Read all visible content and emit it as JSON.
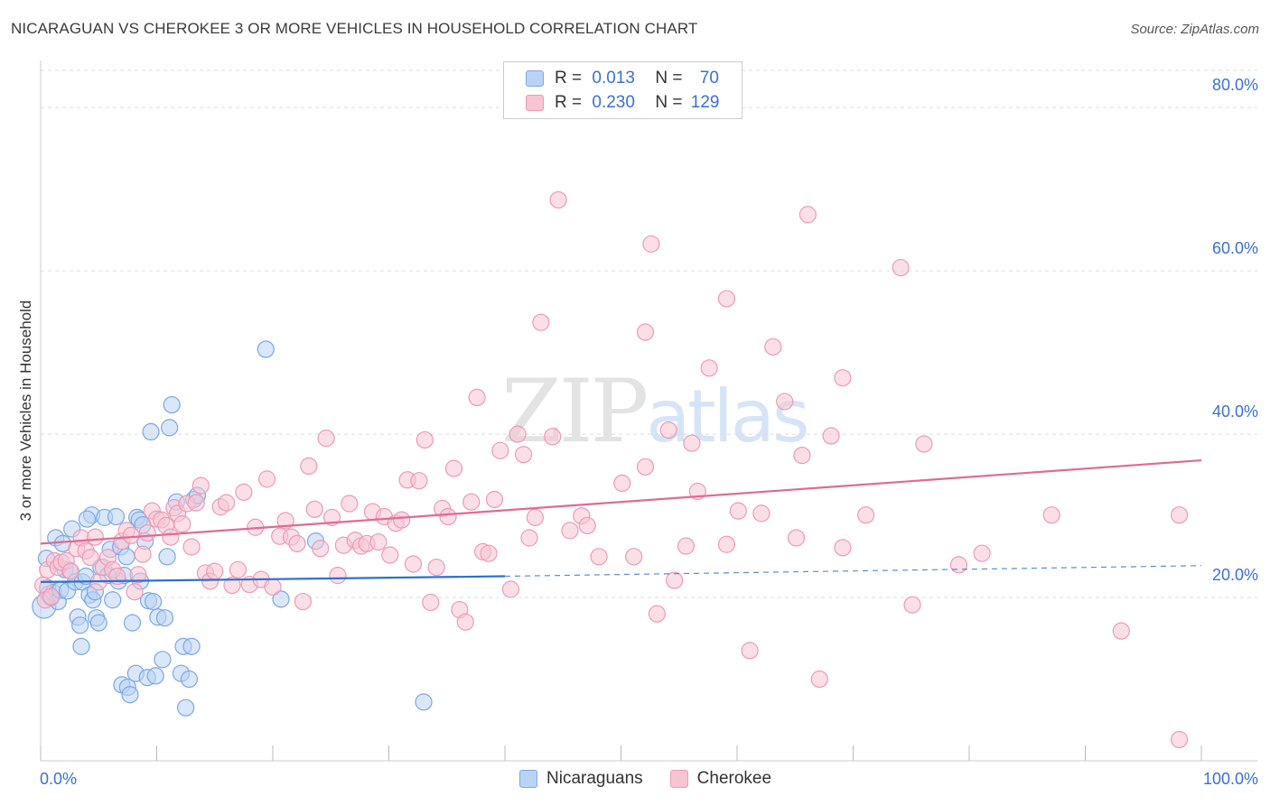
{
  "title": "NICARAGUAN VS CHEROKEE 3 OR MORE VEHICLES IN HOUSEHOLD CORRELATION CHART",
  "source": "Source: ZipAtlas.com",
  "watermark": {
    "zip": "ZIP",
    "atlas": "atlas"
  },
  "legend_top": [
    {
      "r_label": "R =",
      "r_value": "0.013",
      "n_label": "N =",
      "n_value": "70"
    },
    {
      "r_label": "R =",
      "r_value": "0.230",
      "n_label": "N =",
      "n_value": "129"
    }
  ],
  "colors": {
    "blue_fill": "#b9d3f4",
    "blue_stroke": "#7ba7e4",
    "blue_line": "#2f6fd0",
    "pink_fill": "#f7c4d4",
    "pink_stroke": "#ec9ab5",
    "pink_line": "#e06a93",
    "axis_text": "#3a6fd8",
    "grid": "#dddddd"
  },
  "chart_data": {
    "type": "scatter",
    "title": "NICARAGUAN VS CHEROKEE 3 OR MORE VEHICLES IN HOUSEHOLD CORRELATION CHART",
    "xlabel": "",
    "ylabel": "3 or more Vehicles in Household",
    "xlim": [
      0,
      100
    ],
    "ylim": [
      0,
      85
    ],
    "x_tick_labels": [
      {
        "value": 0,
        "label": "0.0%"
      },
      {
        "value": 100,
        "label": "100.0%"
      }
    ],
    "y_tick_labels": [
      {
        "value": 20,
        "label": "20.0%"
      },
      {
        "value": 40,
        "label": "40.0%"
      },
      {
        "value": 60,
        "label": "60.0%"
      },
      {
        "value": 80,
        "label": "80.0%"
      }
    ],
    "x_minor_ticks": [
      0,
      10,
      20,
      30,
      40,
      50,
      60,
      70,
      80,
      90,
      100
    ],
    "grid": true,
    "legend_position": "bottom-center",
    "series": [
      {
        "name": "Nicaraguans",
        "color": "blue",
        "R": 0.013,
        "N": 70,
        "trend": {
          "x0": 0,
          "y0": 21.9,
          "x1": 40,
          "y1": 22.6,
          "dashed_to_x": 100,
          "dashed_to_y": 23.9
        },
        "points": [
          [
            0.3,
            18.9
          ],
          [
            0.5,
            24.8
          ],
          [
            0.6,
            21.2
          ],
          [
            0.7,
            20.4
          ],
          [
            0.9,
            20.0
          ],
          [
            1.1,
            20.6
          ],
          [
            1.3,
            27.3
          ],
          [
            1.5,
            19.5
          ],
          [
            1.7,
            20.9
          ],
          [
            1.9,
            26.6
          ],
          [
            2.1,
            23.4
          ],
          [
            2.3,
            20.8
          ],
          [
            2.5,
            23.3
          ],
          [
            2.7,
            28.4
          ],
          [
            3.0,
            21.9
          ],
          [
            3.2,
            17.6
          ],
          [
            3.4,
            16.6
          ],
          [
            3.5,
            14.0
          ],
          [
            3.6,
            21.9
          ],
          [
            3.9,
            22.6
          ],
          [
            4.2,
            20.3
          ],
          [
            4.4,
            30.1
          ],
          [
            4.5,
            19.7
          ],
          [
            4.7,
            20.7
          ],
          [
            4.8,
            17.5
          ],
          [
            5.0,
            16.9
          ],
          [
            5.2,
            23.7
          ],
          [
            5.5,
            29.8
          ],
          [
            5.8,
            22.7
          ],
          [
            6.0,
            25.9
          ],
          [
            6.2,
            19.7
          ],
          [
            6.5,
            29.9
          ],
          [
            6.7,
            22.0
          ],
          [
            6.9,
            26.2
          ],
          [
            7.0,
            9.3
          ],
          [
            7.2,
            22.7
          ],
          [
            7.4,
            25.0
          ],
          [
            7.5,
            9.0
          ],
          [
            7.7,
            8.1
          ],
          [
            7.9,
            16.9
          ],
          [
            8.2,
            10.7
          ],
          [
            8.3,
            29.8
          ],
          [
            8.5,
            29.5
          ],
          [
            8.6,
            22.0
          ],
          [
            8.8,
            28.9
          ],
          [
            9.0,
            26.9
          ],
          [
            9.2,
            10.2
          ],
          [
            9.3,
            19.6
          ],
          [
            9.5,
            40.3
          ],
          [
            9.7,
            19.5
          ],
          [
            9.9,
            10.4
          ],
          [
            10.1,
            17.6
          ],
          [
            10.5,
            12.4
          ],
          [
            10.7,
            17.5
          ],
          [
            10.9,
            25.0
          ],
          [
            11.1,
            40.8
          ],
          [
            11.3,
            43.6
          ],
          [
            11.7,
            31.7
          ],
          [
            12.1,
            10.7
          ],
          [
            12.3,
            14.0
          ],
          [
            12.5,
            6.5
          ],
          [
            12.8,
            10.0
          ],
          [
            13.0,
            14.0
          ],
          [
            13.2,
            32.0
          ],
          [
            13.5,
            32.5
          ],
          [
            19.4,
            50.4
          ],
          [
            20.7,
            19.8
          ],
          [
            23.7,
            26.9
          ],
          [
            33.0,
            7.2
          ],
          [
            4.0,
            29.6
          ]
        ]
      },
      {
        "name": "Cherokee",
        "color": "pink",
        "R": 0.23,
        "N": 129,
        "trend": {
          "x0": 0,
          "y0": 26.6,
          "x1": 100,
          "y1": 36.8
        },
        "points": [
          [
            0.2,
            21.5
          ],
          [
            0.4,
            19.7
          ],
          [
            0.6,
            23.4
          ],
          [
            0.9,
            20.1
          ],
          [
            1.2,
            24.5
          ],
          [
            1.5,
            23.7
          ],
          [
            1.8,
            24.3
          ],
          [
            2.2,
            24.5
          ],
          [
            2.6,
            23.2
          ],
          [
            3.1,
            26.0
          ],
          [
            3.5,
            27.3
          ],
          [
            3.9,
            25.7
          ],
          [
            4.3,
            24.9
          ],
          [
            4.7,
            27.4
          ],
          [
            5.0,
            21.9
          ],
          [
            5.4,
            23.7
          ],
          [
            5.8,
            24.9
          ],
          [
            6.2,
            23.4
          ],
          [
            6.6,
            22.6
          ],
          [
            7.0,
            26.9
          ],
          [
            7.4,
            28.2
          ],
          [
            7.8,
            27.6
          ],
          [
            8.1,
            20.7
          ],
          [
            8.4,
            22.8
          ],
          [
            8.8,
            25.3
          ],
          [
            9.2,
            27.9
          ],
          [
            9.6,
            30.6
          ],
          [
            10.0,
            29.6
          ],
          [
            10.4,
            29.5
          ],
          [
            10.8,
            28.8
          ],
          [
            11.2,
            27.4
          ],
          [
            11.5,
            31.0
          ],
          [
            11.8,
            30.3
          ],
          [
            12.2,
            29.0
          ],
          [
            12.6,
            31.5
          ],
          [
            13.0,
            26.2
          ],
          [
            13.4,
            31.6
          ],
          [
            13.8,
            33.7
          ],
          [
            14.2,
            23.0
          ],
          [
            14.6,
            22.0
          ],
          [
            15.0,
            23.2
          ],
          [
            15.5,
            31.1
          ],
          [
            16.0,
            31.6
          ],
          [
            16.5,
            21.5
          ],
          [
            17.0,
            23.4
          ],
          [
            17.5,
            32.9
          ],
          [
            18.0,
            21.6
          ],
          [
            18.5,
            28.6
          ],
          [
            19.0,
            22.2
          ],
          [
            19.5,
            34.5
          ],
          [
            20.0,
            21.3
          ],
          [
            20.6,
            27.5
          ],
          [
            21.1,
            29.4
          ],
          [
            21.6,
            27.4
          ],
          [
            22.1,
            26.6
          ],
          [
            22.6,
            19.5
          ],
          [
            23.1,
            36.1
          ],
          [
            23.6,
            30.8
          ],
          [
            24.1,
            26.0
          ],
          [
            24.6,
            39.5
          ],
          [
            25.1,
            29.8
          ],
          [
            25.6,
            22.7
          ],
          [
            26.1,
            26.4
          ],
          [
            26.6,
            31.5
          ],
          [
            27.1,
            27.0
          ],
          [
            27.6,
            26.3
          ],
          [
            28.1,
            26.6
          ],
          [
            28.6,
            30.5
          ],
          [
            29.1,
            26.8
          ],
          [
            29.6,
            29.9
          ],
          [
            30.1,
            25.2
          ],
          [
            30.6,
            29.1
          ],
          [
            31.1,
            29.5
          ],
          [
            31.6,
            34.4
          ],
          [
            32.1,
            24.1
          ],
          [
            32.6,
            34.3
          ],
          [
            33.1,
            39.3
          ],
          [
            33.6,
            19.4
          ],
          [
            34.1,
            23.7
          ],
          [
            34.6,
            30.9
          ],
          [
            35.1,
            29.9
          ],
          [
            35.6,
            35.8
          ],
          [
            36.1,
            18.5
          ],
          [
            36.6,
            17.0
          ],
          [
            37.1,
            31.7
          ],
          [
            37.6,
            44.5
          ],
          [
            38.1,
            25.6
          ],
          [
            38.6,
            25.4
          ],
          [
            39.1,
            32.0
          ],
          [
            39.6,
            38.0
          ],
          [
            40.5,
            21.0
          ],
          [
            41.1,
            40.0
          ],
          [
            41.6,
            37.5
          ],
          [
            42.1,
            27.3
          ],
          [
            42.6,
            29.8
          ],
          [
            43.1,
            53.7
          ],
          [
            44.1,
            39.7
          ],
          [
            44.6,
            68.7
          ],
          [
            45.6,
            28.2
          ],
          [
            46.6,
            30.0
          ],
          [
            47.1,
            28.8
          ],
          [
            48.1,
            25.0
          ],
          [
            50.1,
            34.0
          ],
          [
            51.1,
            25.0
          ],
          [
            52.1,
            52.5
          ],
          [
            52.6,
            63.3
          ],
          [
            52.1,
            36.0
          ],
          [
            53.1,
            18.0
          ],
          [
            54.1,
            40.5
          ],
          [
            54.6,
            22.1
          ],
          [
            55.6,
            26.3
          ],
          [
            56.1,
            38.9
          ],
          [
            56.6,
            33.0
          ],
          [
            57.6,
            48.1
          ],
          [
            59.1,
            56.6
          ],
          [
            59.1,
            26.5
          ],
          [
            60.1,
            30.6
          ],
          [
            61.1,
            13.5
          ],
          [
            62.1,
            30.3
          ],
          [
            63.1,
            50.7
          ],
          [
            64.1,
            44.0
          ],
          [
            65.1,
            27.3
          ],
          [
            65.6,
            37.4
          ],
          [
            66.1,
            66.9
          ],
          [
            67.1,
            10.0
          ],
          [
            68.1,
            39.8
          ],
          [
            69.1,
            46.9
          ],
          [
            69.1,
            26.1
          ],
          [
            71.1,
            30.1
          ],
          [
            74.1,
            60.4
          ],
          [
            75.1,
            19.1
          ],
          [
            76.1,
            38.8
          ],
          [
            79.1,
            24.0
          ],
          [
            81.1,
            25.4
          ],
          [
            87.1,
            30.1
          ],
          [
            93.1,
            15.9
          ],
          [
            98.1,
            30.1
          ],
          [
            98.1,
            2.6
          ]
        ]
      }
    ]
  },
  "bottom_legend": [
    {
      "label": "Nicaraguans"
    },
    {
      "label": "Cherokee"
    }
  ]
}
